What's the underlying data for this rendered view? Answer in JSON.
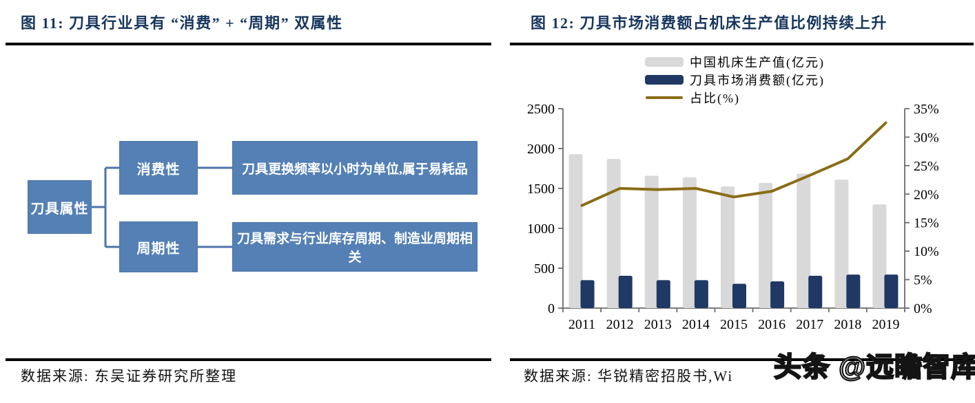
{
  "fig11": {
    "title": "图 11:  刀具行业具有 “消费” + “周期” 双属性",
    "source": "数据来源: 东吴证券研究所整理",
    "diagram": {
      "root": "刀具属性",
      "branches": [
        {
          "label": "消费性",
          "desc": "刀具更换频率以小时为单位,属于易耗品"
        },
        {
          "label": "周期性",
          "desc": "刀具需求与行业库存周期、制造业周期相关"
        }
      ]
    }
  },
  "fig12": {
    "title": "图 12:  刀具市场消费额占机床生产值比例持续上升",
    "source": "数据来源: 华锐精密招股书,Wi",
    "watermark": "头条 @远瞻智库"
  },
  "chart_data": {
    "type": "bar",
    "title": "刀具市场消费额占机床生产值比例持续上升",
    "categories": [
      "2011",
      "2012",
      "2013",
      "2014",
      "2015",
      "2016",
      "2017",
      "2018",
      "2019"
    ],
    "series": [
      {
        "name": "中国机床生产值(亿元)",
        "type": "bar",
        "axis": "left",
        "color": "#D9D9D9",
        "values": [
          1930,
          1870,
          1660,
          1640,
          1525,
          1570,
          1685,
          1610,
          1300
        ]
      },
      {
        "name": "刀具市场消费额(亿元)",
        "type": "bar",
        "axis": "left",
        "color": "#1F3864",
        "values": [
          350,
          405,
          350,
          350,
          305,
          335,
          405,
          420,
          420
        ]
      },
      {
        "name": "占比(%)",
        "type": "line",
        "axis": "right",
        "color": "#8A6C15",
        "values": [
          18.0,
          21.0,
          20.8,
          21.0,
          19.5,
          20.5,
          23.3,
          26.2,
          32.5
        ]
      }
    ],
    "left_axis": {
      "min": 0,
      "max": 2500,
      "step": 500,
      "ticks": [
        "0",
        "500",
        "1000",
        "1500",
        "2000",
        "2500"
      ]
    },
    "right_axis": {
      "min": 0,
      "max": 35,
      "step": 5,
      "ticks": [
        "0%",
        "5%",
        "10%",
        "15%",
        "20%",
        "25%",
        "30%",
        "35%"
      ]
    },
    "legend_position": "top",
    "grid": false
  },
  "colors": {
    "title_navy": "#17365D",
    "box_blue": "#5480B5",
    "bar_gray": "#D9D9D9",
    "bar_navy": "#1F3864",
    "line_gold": "#8A6C15",
    "rule_black": "#000000"
  }
}
